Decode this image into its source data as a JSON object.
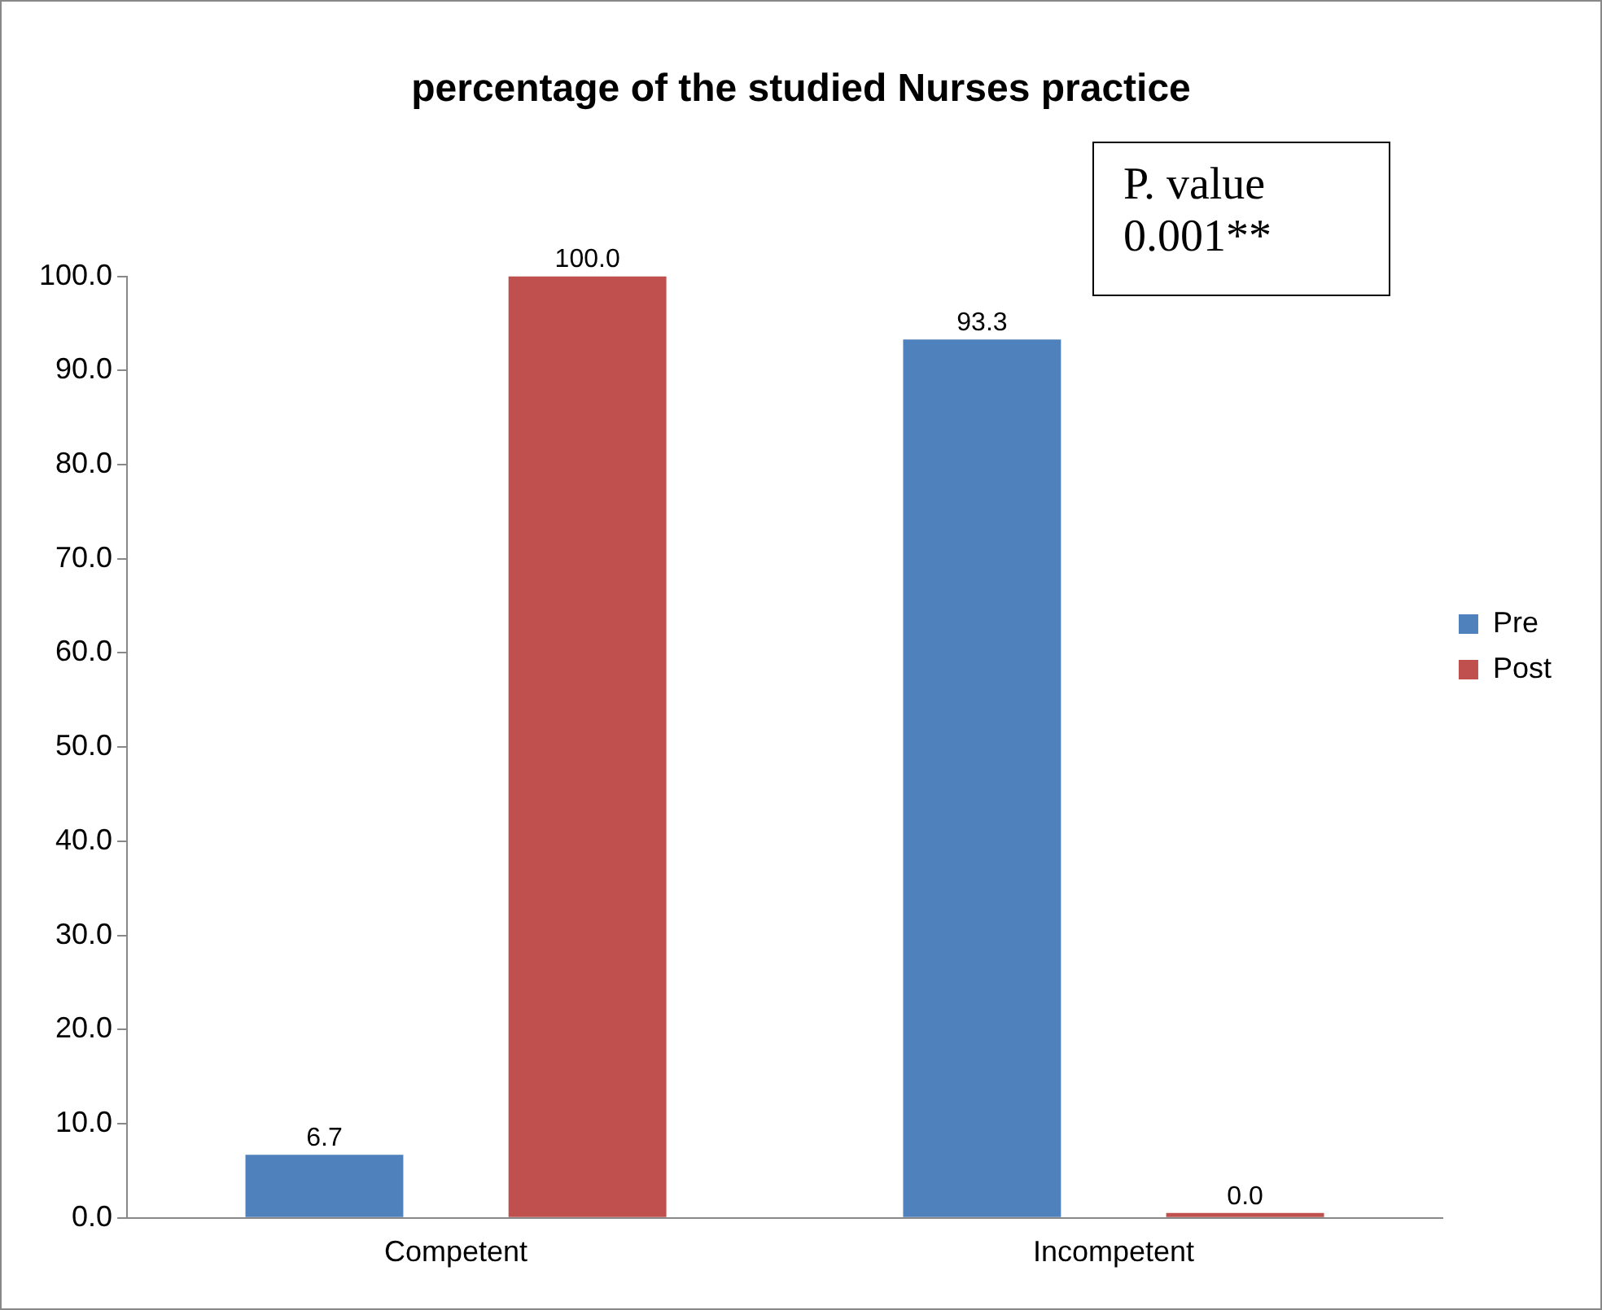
{
  "chart_data": {
    "type": "bar",
    "title": "percentage of the studied Nurses practice",
    "categories": [
      "Competent",
      "Incompetent"
    ],
    "series": [
      {
        "name": "Pre",
        "color": "#4f81bd",
        "values": [
          6.7,
          93.3
        ],
        "value_labels": [
          "6.7",
          "93.3"
        ]
      },
      {
        "name": "Post",
        "color": "#c0504d",
        "values": [
          100,
          0
        ],
        "value_labels": [
          "100.0",
          "0.0"
        ]
      }
    ],
    "ylim": [
      0,
      100
    ],
    "yticks": [
      {
        "value": 0,
        "label": "0.0"
      },
      {
        "value": 10,
        "label": "10.0"
      },
      {
        "value": 20,
        "label": "20.0"
      },
      {
        "value": 30,
        "label": "30.0"
      },
      {
        "value": 40,
        "label": "40.0"
      },
      {
        "value": 50,
        "label": "50.0"
      },
      {
        "value": 60,
        "label": "60.0"
      },
      {
        "value": 70,
        "label": "70.0"
      },
      {
        "value": 80,
        "label": "80.0"
      },
      {
        "value": 90,
        "label": "90.0"
      },
      {
        "value": 100,
        "label": "100.0"
      }
    ],
    "grid": false,
    "legend": "right",
    "annotations": [
      "P. value 0.001**"
    ]
  }
}
